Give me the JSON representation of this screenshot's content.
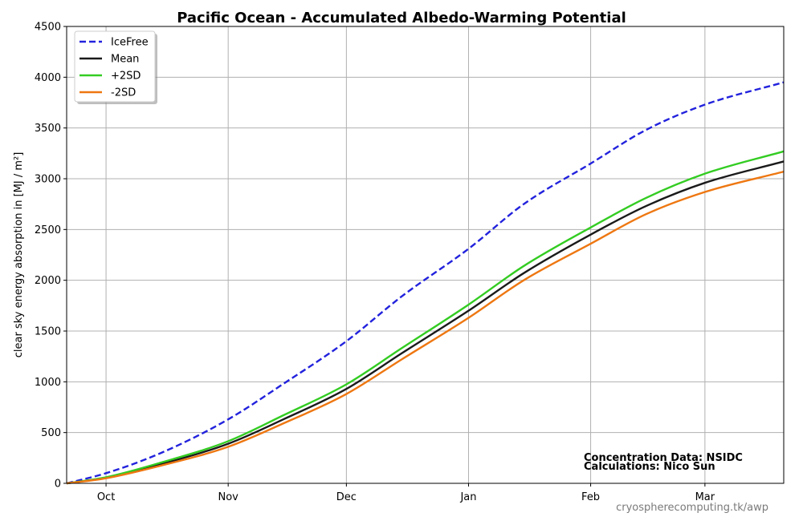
{
  "chart_data": {
    "type": "line",
    "title": "Pacific Ocean - Accumulated Albedo-Warming Potential",
    "xlabel": "",
    "ylabel": "clear sky energy absorption in  [MJ / m²]",
    "ylim": [
      0,
      4500
    ],
    "yticks": [
      0,
      500,
      1000,
      1500,
      2000,
      2500,
      3000,
      3500,
      4000,
      4500
    ],
    "xlim": [
      "2023-09-21",
      "2024-03-21"
    ],
    "xticks": [
      {
        "date": "2023-10-01",
        "label": "Oct"
      },
      {
        "date": "2023-11-01",
        "label": "Nov"
      },
      {
        "date": "2023-12-01",
        "label": "Dec"
      },
      {
        "date": "2024-01-01",
        "label": "Jan"
      },
      {
        "date": "2024-02-01",
        "label": "Feb"
      },
      {
        "date": "2024-03-01",
        "label": "Mar"
      }
    ],
    "grid": true,
    "legend_position": "top-left",
    "series": [
      {
        "name": "IceFree",
        "color": "#2222dd",
        "style": "dashed",
        "points": [
          [
            "2023-09-21",
            0
          ],
          [
            "2023-10-01",
            100
          ],
          [
            "2023-10-15",
            300
          ],
          [
            "2023-11-01",
            630
          ],
          [
            "2023-11-15",
            980
          ],
          [
            "2023-12-01",
            1400
          ],
          [
            "2023-12-15",
            1840
          ],
          [
            "2024-01-01",
            2310
          ],
          [
            "2024-01-15",
            2750
          ],
          [
            "2024-02-01",
            3150
          ],
          [
            "2024-02-15",
            3480
          ],
          [
            "2024-03-01",
            3730
          ],
          [
            "2024-03-21",
            3950
          ]
        ]
      },
      {
        "name": "Mean",
        "color": "#1a1a1a",
        "style": "solid",
        "points": [
          [
            "2023-09-21",
            0
          ],
          [
            "2023-10-01",
            55
          ],
          [
            "2023-10-15",
            190
          ],
          [
            "2023-11-01",
            390
          ],
          [
            "2023-11-15",
            630
          ],
          [
            "2023-12-01",
            930
          ],
          [
            "2023-12-15",
            1280
          ],
          [
            "2024-01-01",
            1700
          ],
          [
            "2024-01-15",
            2070
          ],
          [
            "2024-02-01",
            2450
          ],
          [
            "2024-02-15",
            2730
          ],
          [
            "2024-03-01",
            2960
          ],
          [
            "2024-03-21",
            3170
          ]
        ]
      },
      {
        "name": "+2SD",
        "color": "#33cc22",
        "style": "solid",
        "points": [
          [
            "2023-09-21",
            0
          ],
          [
            "2023-10-01",
            60
          ],
          [
            "2023-10-15",
            205
          ],
          [
            "2023-11-01",
            415
          ],
          [
            "2023-11-15",
            670
          ],
          [
            "2023-12-01",
            975
          ],
          [
            "2023-12-15",
            1330
          ],
          [
            "2024-01-01",
            1760
          ],
          [
            "2024-01-15",
            2140
          ],
          [
            "2024-02-01",
            2520
          ],
          [
            "2024-02-15",
            2810
          ],
          [
            "2024-03-01",
            3050
          ],
          [
            "2024-03-21",
            3270
          ]
        ]
      },
      {
        "name": "-2SD",
        "color": "#ee7711",
        "style": "solid",
        "points": [
          [
            "2023-09-21",
            0
          ],
          [
            "2023-10-01",
            50
          ],
          [
            "2023-10-15",
            175
          ],
          [
            "2023-11-01",
            360
          ],
          [
            "2023-11-15",
            590
          ],
          [
            "2023-12-01",
            880
          ],
          [
            "2023-12-15",
            1220
          ],
          [
            "2024-01-01",
            1630
          ],
          [
            "2024-01-15",
            2000
          ],
          [
            "2024-02-01",
            2360
          ],
          [
            "2024-02-15",
            2650
          ],
          [
            "2024-03-01",
            2870
          ],
          [
            "2024-03-21",
            3070
          ]
        ]
      }
    ],
    "annotations": [
      "Concentration Data: NSIDC",
      "Calculations: Nico Sun"
    ],
    "source_text": "cryospherecomputing.tk/awp"
  }
}
